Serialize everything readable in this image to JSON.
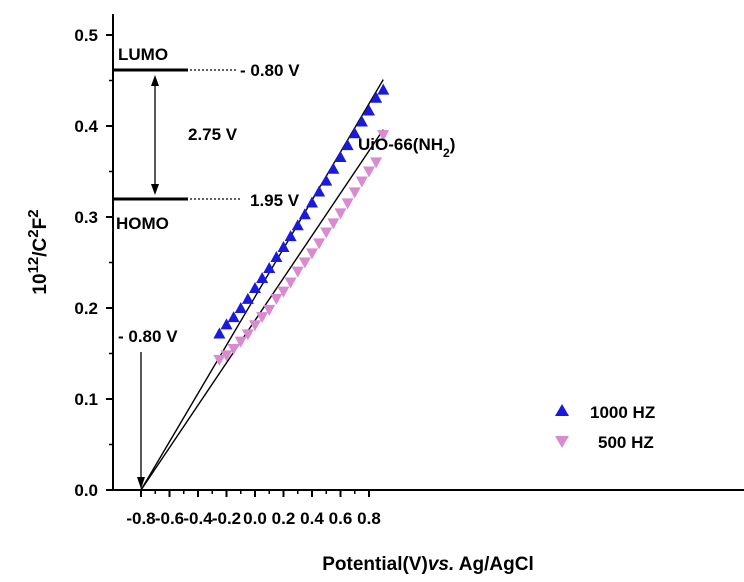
{
  "chart_data": {
    "type": "scatter",
    "xlabel": "Potential(V)",
    "xlabel_italic": "vs.",
    "xlabel_tail": " Ag/AgCl",
    "ylabel_base": "10",
    "ylabel_sup1": "12",
    "ylabel_mid": "/C",
    "ylabel_sup2": "2",
    "ylabel_end": "F",
    "ylabel_sup3": "2",
    "xlim": [
      -0.9,
      0.9
    ],
    "ylim": [
      0.0,
      0.5
    ],
    "x_ticks": [
      -0.8,
      -0.6,
      -0.4,
      -0.2,
      0.0,
      0.2,
      0.4,
      0.6,
      0.8
    ],
    "x_tick_labels": [
      "-0.8",
      "-0.6",
      "-0.4",
      "-0.2",
      "0.0",
      "0.2",
      "0.4",
      "0.6",
      "0.8"
    ],
    "y_ticks": [
      0.0,
      0.1,
      0.2,
      0.3,
      0.4,
      0.5
    ],
    "y_tick_labels": [
      "0.0",
      "0.1",
      "0.2",
      "0.3",
      "0.4",
      "0.5"
    ],
    "series": [
      {
        "name": "1000 HZ",
        "marker": "triangle-up",
        "color": "#1a1adf",
        "x": [
          -0.25,
          -0.2,
          -0.15,
          -0.1,
          -0.05,
          0.0,
          0.05,
          0.1,
          0.15,
          0.2,
          0.25,
          0.3,
          0.35,
          0.4,
          0.45,
          0.5,
          0.55,
          0.6,
          0.65,
          0.7,
          0.75,
          0.8,
          0.85,
          0.9
        ],
        "y": [
          0.172,
          0.182,
          0.19,
          0.2,
          0.21,
          0.222,
          0.233,
          0.244,
          0.256,
          0.267,
          0.279,
          0.291,
          0.303,
          0.316,
          0.328,
          0.34,
          0.353,
          0.366,
          0.379,
          0.392,
          0.405,
          0.417,
          0.431,
          0.44
        ]
      },
      {
        "name": "500 HZ",
        "marker": "triangle-down",
        "color": "#d98bd0",
        "x": [
          -0.25,
          -0.2,
          -0.15,
          -0.1,
          -0.05,
          0.0,
          0.05,
          0.1,
          0.15,
          0.2,
          0.25,
          0.3,
          0.35,
          0.4,
          0.45,
          0.5,
          0.55,
          0.6,
          0.65,
          0.7,
          0.75,
          0.8,
          0.85,
          0.9
        ],
        "y": [
          0.143,
          0.148,
          0.155,
          0.163,
          0.171,
          0.181,
          0.19,
          0.198,
          0.21,
          0.218,
          0.228,
          0.24,
          0.25,
          0.26,
          0.271,
          0.283,
          0.293,
          0.304,
          0.315,
          0.327,
          0.339,
          0.35,
          0.36,
          0.39
        ]
      }
    ],
    "fit_lines": [
      {
        "from": [
          -0.8,
          0.0
        ],
        "to": [
          0.9,
          0.451
        ],
        "color": "#000000"
      },
      {
        "from": [
          -0.8,
          0.0
        ],
        "to": [
          0.9,
          0.396
        ],
        "color": "#000000"
      }
    ],
    "annotations": {
      "compound": "UiO-66(NH",
      "compound_sub": "2",
      "compound_close": ")",
      "lumo_label": "LUMO",
      "lumo_value": "- 0.80 V",
      "homo_label": "HOMO",
      "homo_value": "1.95 V",
      "gap_value": "2.75 V",
      "flatband_label": "- 0.80 V"
    },
    "legend_position": "bottom-right",
    "grid": false
  }
}
